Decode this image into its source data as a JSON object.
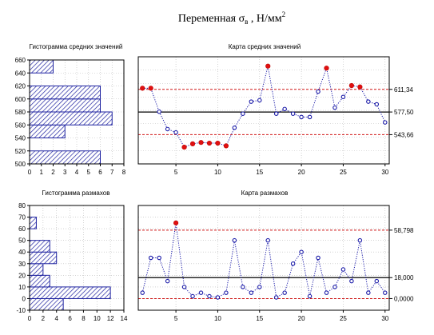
{
  "title": {
    "prefix": "Переменная σ",
    "subscript": "в",
    "suffix": " , Н/мм",
    "superscript": "2"
  },
  "chart_data": [
    {
      "type": "bar",
      "orientation": "horizontal",
      "title": "Гистограмма средних значений",
      "bins": [
        510,
        530,
        550,
        570,
        590,
        610,
        630,
        650
      ],
      "values": [
        6,
        0,
        3,
        7,
        6,
        6,
        0,
        2
      ],
      "xlim": [
        0,
        8
      ],
      "ylim": [
        500,
        660
      ],
      "x_ticks": [
        "0",
        "1",
        "2",
        "3",
        "4",
        "5",
        "6",
        "7",
        "8"
      ],
      "y_ticks": [
        "500",
        "520",
        "540",
        "560",
        "580",
        "600",
        "620",
        "640",
        "660"
      ],
      "grid": true
    },
    {
      "type": "line",
      "title": "Карта средних значений",
      "x": [
        1,
        2,
        3,
        4,
        5,
        6,
        7,
        8,
        9,
        10,
        11,
        12,
        13,
        14,
        15,
        16,
        17,
        18,
        19,
        20,
        21,
        22,
        23,
        24,
        25,
        26,
        27,
        28,
        29,
        30
      ],
      "values": [
        613,
        613,
        578,
        552,
        547,
        525,
        530,
        532,
        531,
        531,
        527,
        554,
        575,
        593,
        595,
        646,
        575,
        582,
        575,
        570,
        570,
        608,
        643,
        584,
        600,
        617,
        615,
        593,
        589,
        562
      ],
      "center_line": 577.5,
      "ucl": 611.34,
      "lcl": 543.66,
      "ylim": [
        500,
        660
      ],
      "xlim": [
        0,
        30
      ],
      "x_ticks": [
        "5",
        "10",
        "15",
        "20",
        "25",
        "30"
      ],
      "reference_labels": [
        "611,34",
        "577,50",
        "543,66"
      ],
      "grid": true
    },
    {
      "type": "bar",
      "orientation": "horizontal",
      "title": "Гистограмма размахов",
      "bins": [
        -5,
        5,
        15,
        25,
        35,
        45,
        55,
        65,
        75
      ],
      "values": [
        5,
        12,
        3,
        2,
        4,
        3,
        0,
        1,
        0
      ],
      "xlim": [
        0,
        14
      ],
      "ylim": [
        -10,
        80
      ],
      "x_ticks": [
        "0",
        "2",
        "4",
        "6",
        "8",
        "10",
        "12",
        "14"
      ],
      "y_ticks": [
        "-10",
        "0",
        "10",
        "20",
        "30",
        "40",
        "50",
        "60",
        "70",
        "80"
      ],
      "grid": true
    },
    {
      "type": "line",
      "title": "Карта размахов",
      "x": [
        1,
        2,
        3,
        4,
        5,
        6,
        7,
        8,
        9,
        10,
        11,
        12,
        13,
        14,
        15,
        16,
        17,
        18,
        19,
        20,
        21,
        22,
        23,
        24,
        25,
        26,
        27,
        28,
        29,
        30
      ],
      "values": [
        5,
        35,
        35,
        15,
        65,
        10,
        2,
        5,
        2,
        1,
        5,
        50,
        10,
        5,
        10,
        50,
        1,
        5,
        30,
        40,
        2,
        35,
        5,
        10,
        25,
        15,
        50,
        5,
        15,
        5
      ],
      "center_line": 18.0,
      "ucl": 58.798,
      "lcl": 0.0,
      "ylim": [
        -10,
        80
      ],
      "xlim": [
        0,
        30
      ],
      "x_ticks": [
        "5",
        "10",
        "15",
        "20",
        "25",
        "30"
      ],
      "reference_labels": [
        "58,798",
        "18,000",
        "0,0000"
      ],
      "grid": true
    }
  ]
}
